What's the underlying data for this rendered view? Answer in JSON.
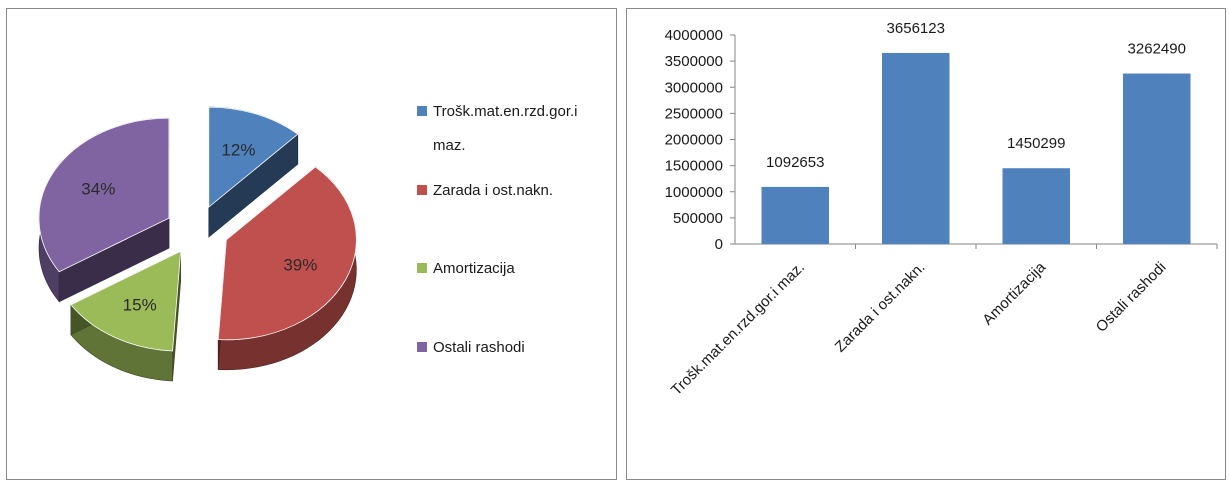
{
  "chart_data": [
    {
      "type": "pie",
      "categories": [
        "Trošk.mat.en.rzd.gor.i maz.",
        "Zarada i ost.nakn.",
        "Amortizacija",
        "Ostali rashodi"
      ],
      "values": [
        12,
        39,
        15,
        34
      ],
      "labels": [
        "12%",
        "39%",
        "15%",
        "34%"
      ],
      "legend": [
        "Trošk.mat.en.rzd.gor.i",
        "maz.",
        "Zarada i ost.nakn.",
        "Amortizacija",
        "Ostali rashodi"
      ],
      "legend_position": "right",
      "colors": [
        "#4f81bd",
        "#c0504d",
        "#9bbb59",
        "#8064a2"
      ],
      "exploded": true,
      "style": "3d"
    },
    {
      "type": "bar",
      "categories": [
        "Trošk.mat.en.rzd.gor.i maz.",
        "Zarada i ost.nakn.",
        "Amortizacija",
        "Ostali rashodi"
      ],
      "values": [
        1092653,
        3656123,
        1450299,
        3262490
      ],
      "data_labels": [
        "1092653",
        "3656123",
        "1450299",
        "3262490"
      ],
      "ylim": [
        0,
        4000000
      ],
      "yticks": [
        "0",
        "500000",
        "1000000",
        "1500000",
        "2000000",
        "2500000",
        "3000000",
        "3500000",
        "4000000"
      ],
      "grid": false,
      "legend": "none",
      "color": "#4f81bd"
    }
  ]
}
